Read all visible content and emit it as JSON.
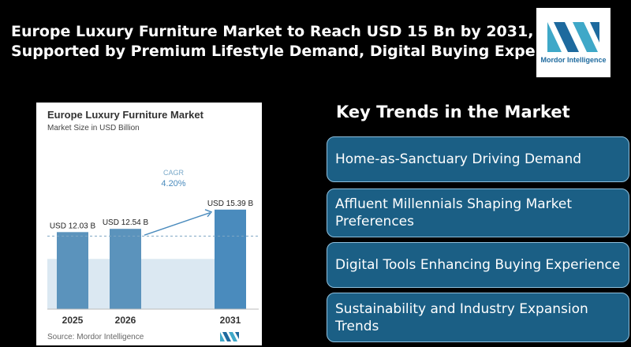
{
  "headline": {
    "line1": "Europe Luxury Furniture Market to Reach USD 15 Bn by 2031,",
    "line2": "Supported by Premium Lifestyle Demand, Digital Buying Experience"
  },
  "logo": {
    "text": "Mordor Intelligence"
  },
  "chart_data": {
    "type": "bar",
    "title": "Europe Luxury Furniture Market",
    "subtitle": "Market Size in USD Billion",
    "categories": [
      "2025",
      "2026",
      "2031"
    ],
    "values": [
      12.03,
      12.54,
      15.39
    ],
    "value_labels": [
      "USD 12.03 B",
      "USD 12.54 B",
      "USD 15.39 B"
    ],
    "annotation": {
      "label": "CAGR",
      "value": "4.20%"
    },
    "source": "Source: Mordor Intelligence",
    "bar_color": "#5b93bc",
    "last_bar_color": "#4a8bbd",
    "band_color": "#dbe8f2"
  },
  "trends": {
    "title": "Key Trends in the Market",
    "items": [
      "Home-as-Sanctuary Driving Demand",
      "Affluent Millennials Shaping Market Preferences",
      "Digital Tools Enhancing Buying Experience",
      "Sustainability and Industry Expansion Trends"
    ]
  }
}
